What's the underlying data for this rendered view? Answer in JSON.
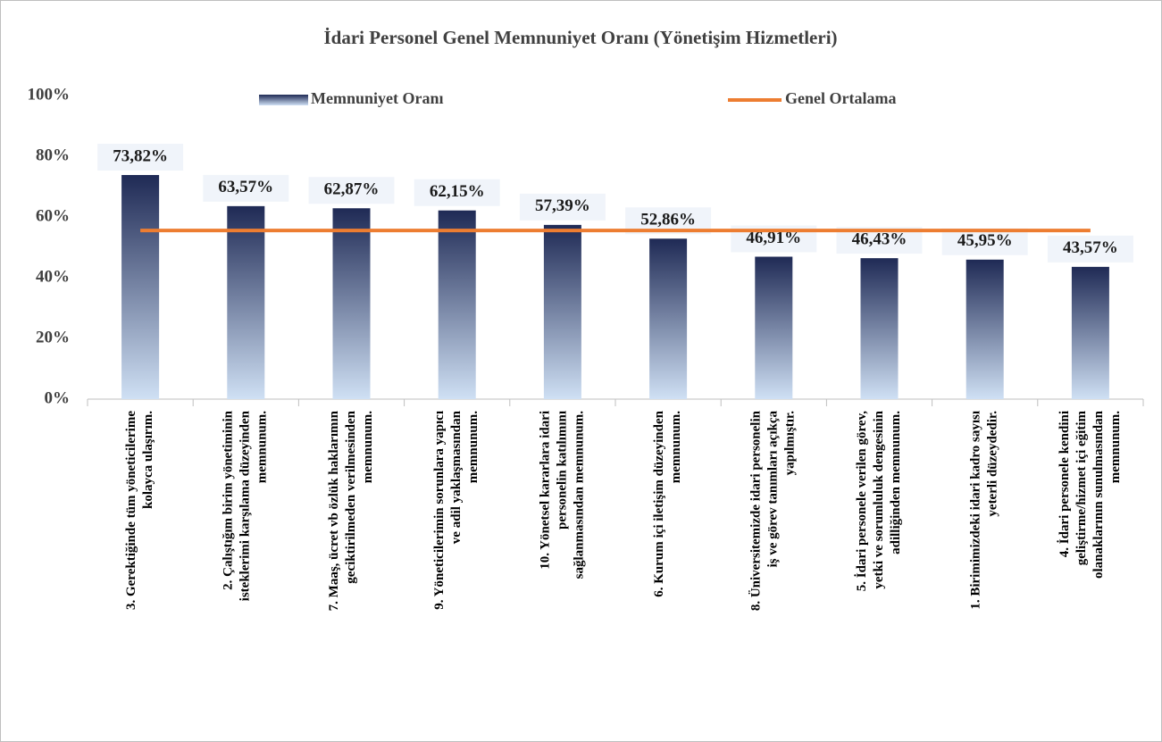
{
  "chart_data": {
    "type": "bar",
    "title": "İdari Personel Genel Memnuniyet Oranı (Yönetişim Hizmetleri)",
    "categories": [
      [
        "3. Gerektiğinde tüm yöneticilerime",
        "kolayca ulaşırım."
      ],
      [
        "2. Çalıştığım birim yönetiminin",
        "isteklerimi karşılama düzeyinden",
        "memnunum."
      ],
      [
        "7. Maaş, ücret vb özlük haklarımın",
        "geciktirilmeden verilmesinden",
        "memnunum."
      ],
      [
        "9. Yöneticilerimin sorunlara yapıcı",
        "ve adil yaklaşmasından",
        "memnunum."
      ],
      [
        "10. Yönetsel kararlara idari",
        "personelin katılımını",
        "sağlanmasından memnunum."
      ],
      [
        "6. Kurum içi iletişim düzeyinden",
        "memnunum."
      ],
      [
        "8. Üniversitemizde idari personelin",
        "iş ve görev tanımları açıkça",
        "yapılmıştır."
      ],
      [
        "5. İdari personele verilen görev,",
        "yetki ve sorumluluk dengesinin",
        "adilliğinden memnunum."
      ],
      [
        "1. Birimimizdeki idari kadro sayısı",
        "yeterli düzeydedir."
      ],
      [
        "4. İdari personele kendini",
        "geliştirme/hizmet içi eğitim",
        "olanaklarının sunulmasından",
        "memnunum."
      ]
    ],
    "series": [
      {
        "name": "Memnuniyet Oranı",
        "type": "bar",
        "color": "#1f2a55",
        "values": [
          73.82,
          63.57,
          62.87,
          62.15,
          57.39,
          52.86,
          46.91,
          46.43,
          45.95,
          43.57
        ],
        "value_labels": [
          "73,82%",
          "63,57%",
          "62,87%",
          "62,15%",
          "57,39%",
          "52,86%",
          "46,91%",
          "46,43%",
          "45,95%",
          "43,57%"
        ]
      },
      {
        "name": "Genel Ortalama",
        "type": "line",
        "color": "#ed7d31",
        "values": [
          55.55,
          55.55,
          55.55,
          55.55,
          55.55,
          55.55,
          55.55,
          55.55,
          55.55,
          55.55
        ]
      }
    ],
    "ylim": [
      0,
      100
    ],
    "yticks": [
      {
        "value": 0,
        "label": "0%"
      },
      {
        "value": 20,
        "label": "20%"
      },
      {
        "value": 40,
        "label": "40%"
      },
      {
        "value": 60,
        "label": "60%"
      },
      {
        "value": 80,
        "label": "80%"
      },
      {
        "value": 100,
        "label": "100%"
      }
    ],
    "legend": "top"
  }
}
